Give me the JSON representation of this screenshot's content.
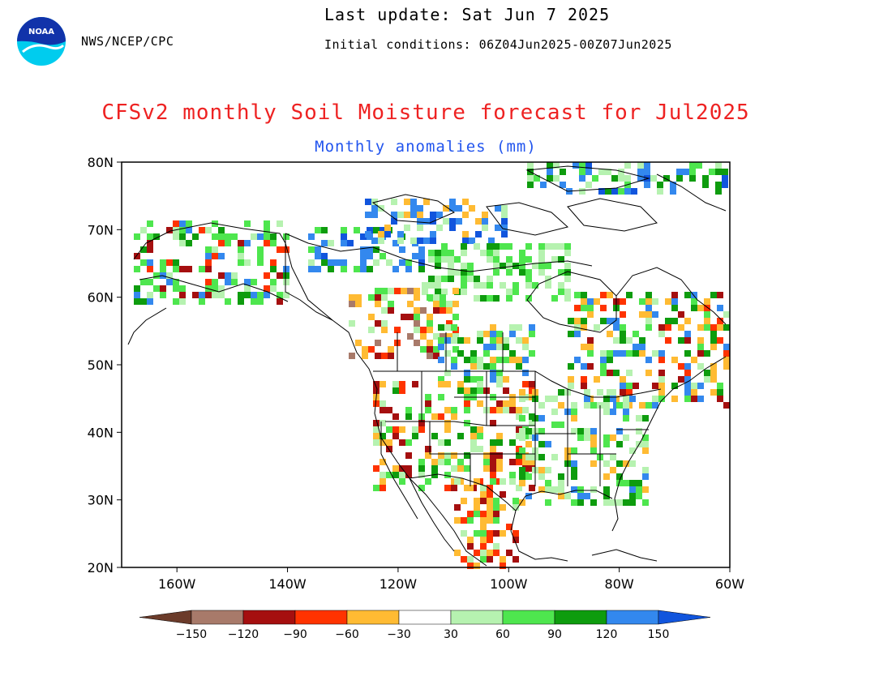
{
  "header": {
    "agency": "NWS/NCEP/CPC",
    "last_update": "Last update: Sat Jun 7 2025",
    "initial_conditions": "Initial conditions: 06Z04Jun2025-00Z07Jun2025",
    "logo_text": "NOAA"
  },
  "title": "CFSv2 monthly Soil Moisture forecast for Jul2025",
  "subtitle": "Monthly anomalies (mm)",
  "map": {
    "lat_ticks": [
      "80N",
      "70N",
      "60N",
      "50N",
      "40N",
      "30N",
      "20N"
    ],
    "lon_ticks": [
      "160W",
      "140W",
      "120W",
      "100W",
      "80W",
      "60W"
    ],
    "lat_range": [
      20,
      80
    ],
    "lon_range": [
      -170,
      -60
    ]
  },
  "colorbar": {
    "labels": [
      "-150",
      "-120",
      "-90",
      "-60",
      "-30",
      "30",
      "60",
      "90",
      "120",
      "150"
    ],
    "colors": [
      "#6b3b2a",
      "#a87a6a",
      "#a50f0f",
      "#ff3300",
      "#ffbb33",
      "#ffffff",
      "#b6f2b0",
      "#4ee64e",
      "#0e9c0e",
      "#3388ee",
      "#1155dd"
    ]
  },
  "colors": {
    "title": "#ee2222",
    "subtitle": "#2255ee"
  }
}
